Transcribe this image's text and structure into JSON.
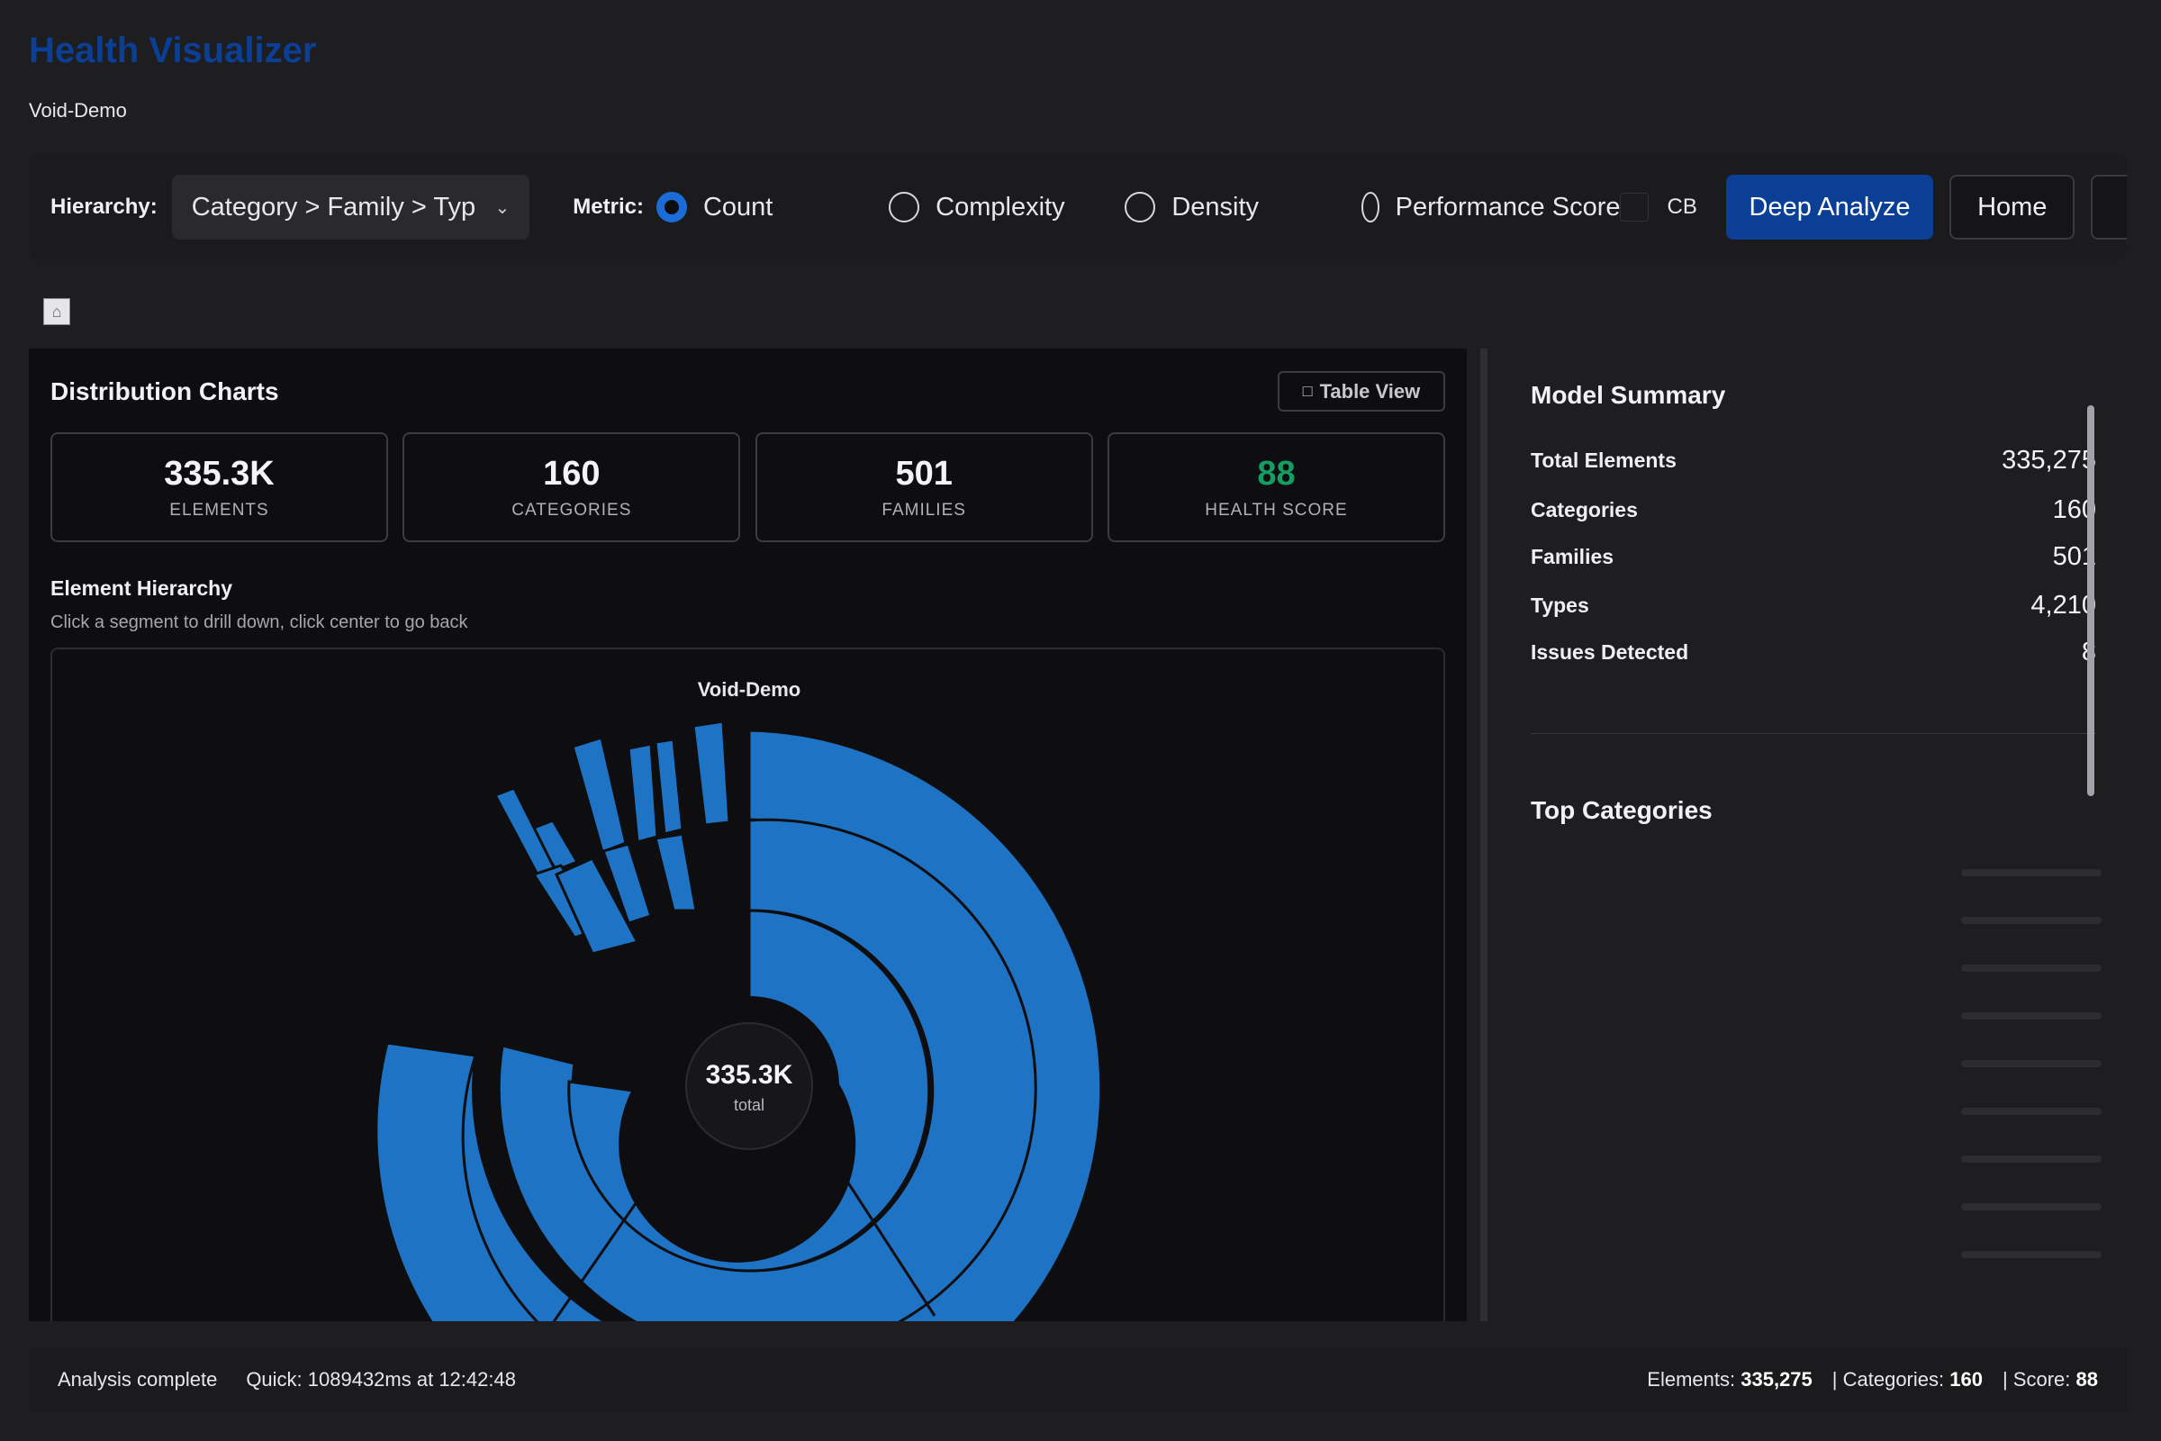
{
  "app": {
    "title": "Health Visualizer",
    "project": "Void-Demo"
  },
  "toolbar": {
    "hierarchy_label": "Hierarchy:",
    "hierarchy_value": "Category > Family > Typ",
    "metric_label": "Metric:",
    "metrics": [
      {
        "label": "Count",
        "selected": true
      },
      {
        "label": "Complexity",
        "selected": false
      },
      {
        "label": "Density",
        "selected": false
      },
      {
        "label": "Performance Score",
        "selected": false
      }
    ],
    "cb_label": "CB",
    "deep_analyze": "Deep Analyze",
    "home": "Home"
  },
  "distribution": {
    "title": "Distribution Charts",
    "table_view": "Table View",
    "stats": [
      {
        "value": "335.3K",
        "label": "ELEMENTS"
      },
      {
        "value": "160",
        "label": "CATEGORIES"
      },
      {
        "value": "501",
        "label": "FAMILIES"
      },
      {
        "value": "88",
        "label": "HEALTH SCORE",
        "color": "#169e62"
      }
    ],
    "hierarchy_title": "Element Hierarchy",
    "hierarchy_hint": "Click a segment to drill down, click center to go back",
    "chart_title": "Void-Demo",
    "center_value": "335.3K",
    "center_label": "total"
  },
  "summary": {
    "title": "Model Summary",
    "rows": [
      {
        "key": "Total Elements",
        "value": "335,275"
      },
      {
        "key": "Categories",
        "value": "160"
      },
      {
        "key": "Families",
        "value": "501"
      },
      {
        "key": "Types",
        "value": "4,210"
      },
      {
        "key": "Issues Detected",
        "value": "8"
      }
    ],
    "top_categories_title": "Top Categories"
  },
  "status": {
    "state": "Analysis complete",
    "timing": "Quick: 1089432ms at 12:42:48",
    "elements_label": "Elements:",
    "elements_value": "335,275",
    "categories_label": "| Categories:",
    "categories_value": "160",
    "score_label": "| Score:",
    "score_value": "88"
  },
  "colors": {
    "accent": "#0a3f95",
    "segment": "#1e73c4",
    "good": "#169e62"
  },
  "icons": {
    "home_mini": "home-icon",
    "table_view": "table-icon",
    "select": "chevron-down-icon"
  }
}
